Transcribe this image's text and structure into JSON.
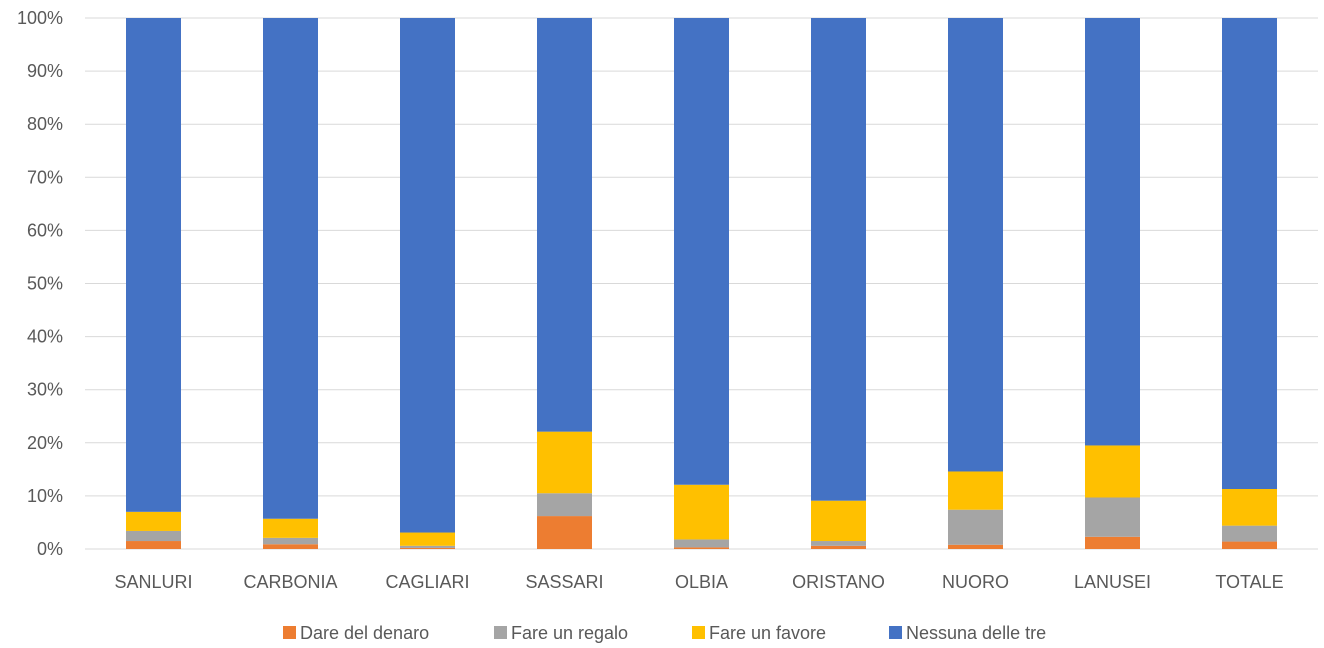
{
  "chart_data": {
    "type": "bar",
    "stacked": true,
    "categories": [
      "SANLURI",
      "CARBONIA",
      "CAGLIARI",
      "SASSARI",
      "OLBIA",
      "ORISTANO",
      "NUORO",
      "LANUSEI",
      "TOTALE"
    ],
    "series": [
      {
        "name": "Dare del denaro",
        "color": "#ed7d31",
        "values": [
          1.5,
          0.9,
          0.2,
          6.2,
          0.3,
          0.6,
          0.8,
          2.3,
          1.4
        ]
      },
      {
        "name": "Fare un regalo",
        "color": "#a5a5a5",
        "values": [
          1.9,
          1.2,
          0.4,
          4.3,
          1.5,
          0.9,
          6.6,
          7.4,
          3.0
        ]
      },
      {
        "name": "Fare un favore",
        "color": "#ffc000",
        "values": [
          3.6,
          3.6,
          2.5,
          11.6,
          10.3,
          7.6,
          7.2,
          9.8,
          6.9
        ]
      },
      {
        "name": "Nessuna delle tre",
        "color": "#4472c4",
        "values": [
          93.0,
          94.3,
          96.9,
          77.9,
          87.9,
          90.9,
          85.4,
          80.5,
          88.7
        ]
      }
    ],
    "y_ticks": [
      "0%",
      "10%",
      "20%",
      "30%",
      "40%",
      "50%",
      "60%",
      "70%",
      "80%",
      "90%",
      "100%"
    ],
    "ylim": [
      0,
      100
    ],
    "grid": true,
    "legend_position": "bottom"
  }
}
